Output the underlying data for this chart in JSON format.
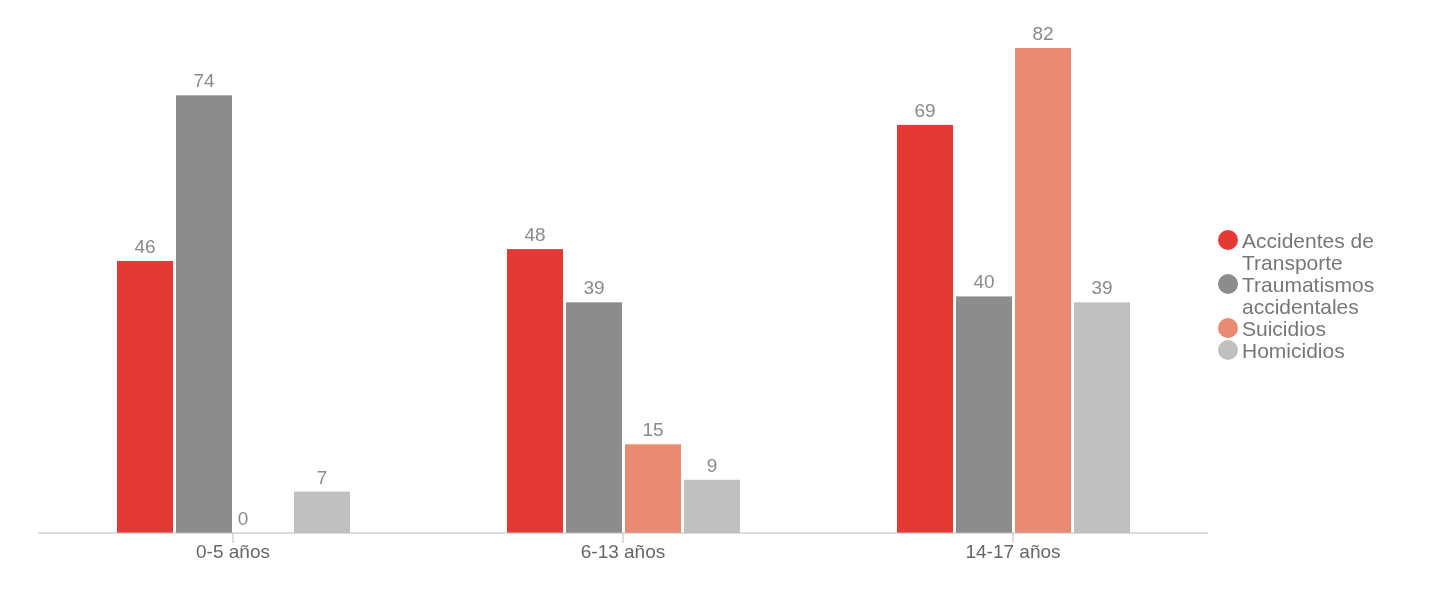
{
  "chart_data": {
    "type": "bar",
    "categories": [
      "0-5 años",
      "6-13 años",
      "14-17 años"
    ],
    "series": [
      {
        "name": "Accidentes de Transporte",
        "color": "#e53935",
        "values": [
          46,
          48,
          69
        ]
      },
      {
        "name": "Traumatismos accidentales",
        "color": "#8c8c8c",
        "values": [
          74,
          39,
          40
        ]
      },
      {
        "name": "Suicidios",
        "color": "#ea8a73",
        "values": [
          0,
          15,
          82
        ]
      },
      {
        "name": "Homicidios",
        "color": "#c0c0c0",
        "values": [
          7,
          9,
          39
        ]
      }
    ],
    "data_labels": true,
    "legend": "right",
    "grid": false
  }
}
